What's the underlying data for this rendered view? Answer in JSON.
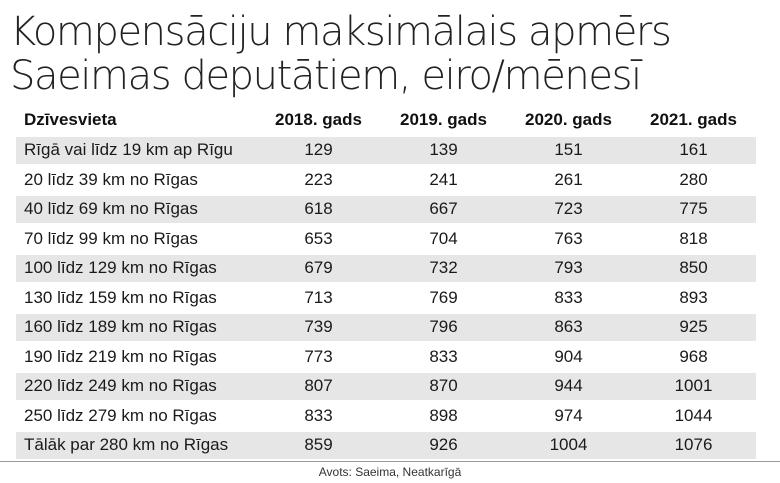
{
  "title_lines": [
    "Kompensāciju maksimālais apmērs",
    "Saeimas deputātiem, eiro/mēnesī"
  ],
  "source": "Avots: Saeima, Neatkarīgā",
  "colors": {
    "row_shade": "#e6e6e6",
    "background": "#ffffff"
  },
  "chart_data": {
    "type": "table",
    "title": "Kompensāciju maksimālais apmērs Saeimas deputātiem, eiro/mēnesī",
    "columns": [
      "Dzīvesvieta",
      "2018. gads",
      "2019. gads",
      "2020. gads",
      "2021. gads"
    ],
    "rows": [
      [
        "Rīgā vai līdz 19 km ap Rīgu",
        "129",
        "139",
        "151",
        "161"
      ],
      [
        "20 līdz 39 km no Rīgas",
        "223",
        "241",
        "261",
        "280"
      ],
      [
        "40 līdz 69 km no Rīgas",
        "618",
        "667",
        "723",
        "775"
      ],
      [
        "70 līdz 99 km no Rīgas",
        "653",
        "704",
        "763",
        "818"
      ],
      [
        "100 līdz 129 km no Rīgas",
        "679",
        "732",
        "793",
        "850"
      ],
      [
        "130 līdz 159 km no Rīgas",
        "713",
        "769",
        "833",
        "893"
      ],
      [
        "160 līdz 189 km no Rīgas",
        "739",
        "796",
        "863",
        "925"
      ],
      [
        "190 līdz 219 km no Rīgas",
        "773",
        "833",
        "904",
        "968"
      ],
      [
        "220 līdz 249 km no Rīgas",
        "807",
        "870",
        "944",
        "1001"
      ],
      [
        "250 līdz 279 km no Rīgas",
        "833",
        "898",
        "974",
        "1044"
      ],
      [
        "Tālāk par 280 km no Rīgas",
        "859",
        "926",
        "1004",
        "1076"
      ]
    ]
  }
}
